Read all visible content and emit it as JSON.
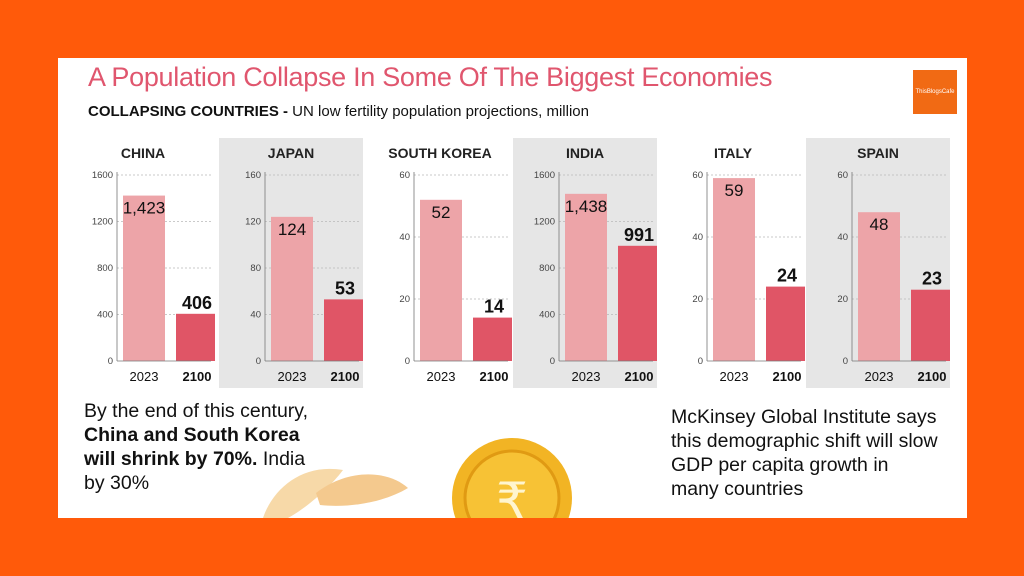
{
  "header": {
    "title": "A Population Collapse In Some Of The Biggest Economies",
    "subtitle_bold": "COLLAPSING COUNTRIES -",
    "subtitle_rest": " UN low fertility population projections, million",
    "logo_text": "ThisBlogsCafe"
  },
  "colors": {
    "background": "#ff5a0a",
    "bar_2023": "#eda4a8",
    "bar_2100": "#e05566",
    "title": "#e0566e",
    "panel_shade": "#e6e6e6"
  },
  "chart_data": [
    {
      "type": "bar",
      "title": "CHINA",
      "categories": [
        "2023",
        "2100"
      ],
      "values": [
        1423,
        406
      ],
      "value_labels": [
        "1,423",
        "406"
      ],
      "yticks": [
        "0",
        "400",
        "800",
        "1200",
        "1600"
      ],
      "ylim": [
        0,
        1600
      ],
      "shaded": false
    },
    {
      "type": "bar",
      "title": "JAPAN",
      "categories": [
        "2023",
        "2100"
      ],
      "values": [
        124,
        53
      ],
      "value_labels": [
        "124",
        "53"
      ],
      "yticks": [
        "0",
        "40",
        "80",
        "120",
        "160"
      ],
      "ylim": [
        0,
        160
      ],
      "shaded": true
    },
    {
      "type": "bar",
      "title": "SOUTH KOREA",
      "categories": [
        "2023",
        "2100"
      ],
      "values": [
        52,
        14
      ],
      "value_labels": [
        "52",
        "14"
      ],
      "yticks": [
        "0",
        "20",
        "40",
        "60"
      ],
      "ylim": [
        0,
        60
      ],
      "shaded": false
    },
    {
      "type": "bar",
      "title": "INDIA",
      "categories": [
        "2023",
        "2100"
      ],
      "values": [
        1438,
        991
      ],
      "value_labels": [
        "1,438",
        "991"
      ],
      "yticks": [
        "0",
        "400",
        "800",
        "1200",
        "1600"
      ],
      "ylim": [
        0,
        1600
      ],
      "shaded": true
    },
    {
      "type": "bar",
      "title": "ITALY",
      "categories": [
        "2023",
        "2100"
      ],
      "values": [
        59,
        24
      ],
      "value_labels": [
        "59",
        "24"
      ],
      "yticks": [
        "0",
        "20",
        "40",
        "60"
      ],
      "ylim": [
        0,
        60
      ],
      "shaded": false
    },
    {
      "type": "bar",
      "title": "SPAIN",
      "categories": [
        "2023",
        "2100"
      ],
      "values": [
        48,
        23
      ],
      "value_labels": [
        "48",
        "23"
      ],
      "yticks": [
        "0",
        "20",
        "40",
        "60"
      ],
      "ylim": [
        0,
        60
      ],
      "shaded": true
    }
  ],
  "notes": {
    "left_pre": "By the end of this century, ",
    "left_bold": "China and South Korea will shrink by 70%.",
    "left_post": " India by 30%",
    "right": "McKinsey Global Institute says this demographic shift will slow GDP per capita growth in many countries"
  },
  "decor": {
    "coin_icon": "rupee-coin-icon",
    "leaf_icon": "leaf-icon"
  }
}
